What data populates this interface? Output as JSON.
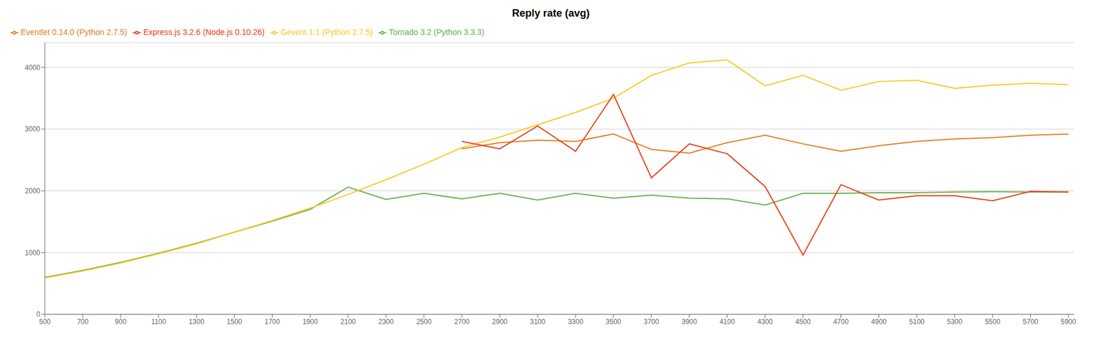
{
  "chart_data": {
    "type": "line",
    "title": "Reply rate (avg)",
    "x": [
      500,
      700,
      900,
      1100,
      1300,
      1500,
      1700,
      1900,
      2100,
      2300,
      2500,
      2700,
      2900,
      3100,
      3300,
      3500,
      3700,
      3900,
      4100,
      4300,
      4500,
      4700,
      4900,
      5100,
      5300,
      5500,
      5700,
      5900
    ],
    "series": [
      {
        "name": "Tornado 3.2 (Python 3.3.3)",
        "color": "#6ab04c",
        "values": [
          600,
          710,
          840,
          990,
          1150,
          1330,
          1510,
          1700,
          2060,
          1860,
          1960,
          1870,
          1960,
          1850,
          1960,
          1880,
          1930,
          1880,
          1870,
          1770,
          1960,
          1960,
          1970,
          1970,
          1980,
          1985,
          1980,
          1980
        ]
      },
      {
        "name": "Gevent 1.1 (Python 2.7.5)",
        "color": "#f9ca24",
        "values": [
          590,
          700,
          830,
          980,
          1140,
          1330,
          1520,
          1720,
          1940,
          2180,
          2430,
          2700,
          2870,
          3070,
          3270,
          3500,
          3870,
          4070,
          4120,
          3700,
          3870,
          3630,
          3770,
          3790,
          3660,
          3710,
          3740,
          3720
        ]
      },
      {
        "name": "Eventlet 0.14.0 (Python 2.7.5)",
        "color": "#e67e22",
        "values": [
          null,
          null,
          null,
          null,
          null,
          null,
          null,
          null,
          null,
          null,
          null,
          2680,
          2780,
          2820,
          2800,
          2920,
          2670,
          2610,
          2780,
          2900,
          2760,
          2640,
          2730,
          2800,
          2840,
          2860,
          2900,
          2920
        ]
      },
      {
        "name": "Express.js 3.2.6 (Node.js 0.10.26)",
        "color": "#e84118",
        "values": [
          null,
          null,
          null,
          null,
          null,
          null,
          null,
          null,
          null,
          null,
          null,
          2800,
          2680,
          3050,
          2640,
          3560,
          2210,
          2760,
          2600,
          2070,
          960,
          2100,
          1850,
          1920,
          1920,
          1840,
          1990,
          1980
        ]
      }
    ],
    "xlim": [
      500,
      5930
    ],
    "xticks": [
      500,
      700,
      900,
      1100,
      1300,
      1500,
      1700,
      1900,
      2100,
      2300,
      2500,
      2700,
      2900,
      3100,
      3300,
      3500,
      3700,
      3900,
      4100,
      4300,
      4500,
      4700,
      4900,
      5100,
      5300,
      5500,
      5700,
      5900
    ],
    "ylim": [
      0,
      4400
    ],
    "yticks": [
      0,
      1000,
      2000,
      3000,
      4000
    ],
    "grid": "y",
    "legend": "upper left"
  }
}
